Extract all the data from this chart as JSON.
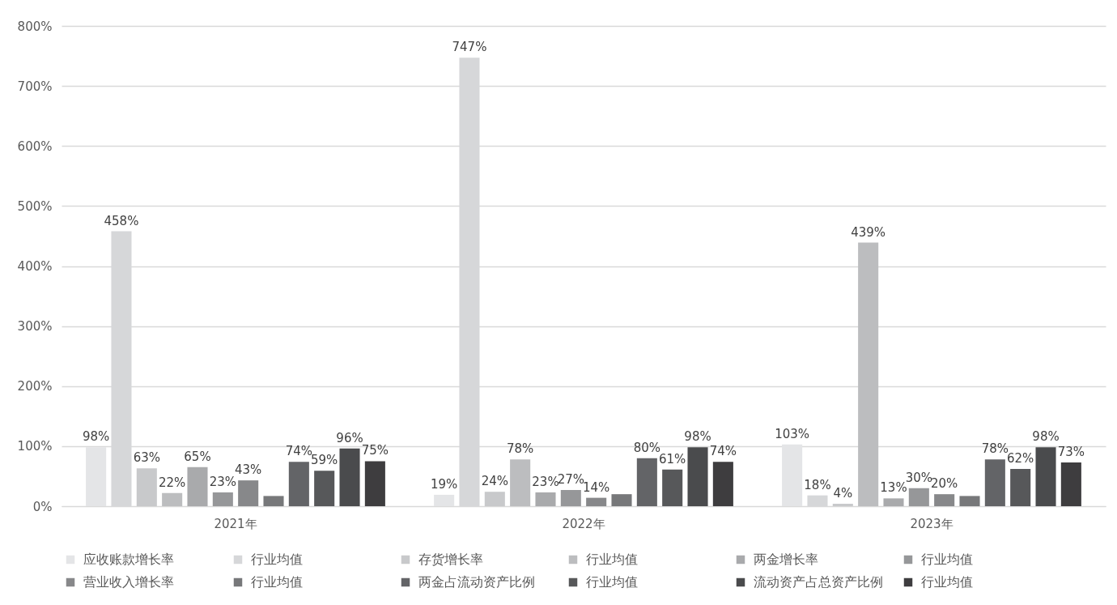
{
  "chart_data": {
    "type": "bar",
    "categories": [
      "2021年",
      "2022年",
      "2023年"
    ],
    "series": [
      {
        "name": "应收账款增长率",
        "color": "#e4e5e7",
        "values": [
          98,
          19,
          103
        ],
        "value_labels": [
          "98%",
          "19%",
          "103%"
        ]
      },
      {
        "name": "行业均值",
        "color": "#d6d7d9",
        "values": [
          458,
          747,
          18
        ],
        "value_labels": [
          "458%",
          "747%",
          "18%"
        ]
      },
      {
        "name": "存货增长率",
        "color": "#c8c9cb",
        "values": [
          63,
          24,
          4
        ],
        "value_labels": [
          "63%",
          "24%",
          "4%"
        ]
      },
      {
        "name": "行业均值",
        "color": "#bcbdbf",
        "values": [
          22,
          78,
          439
        ],
        "value_labels": [
          "22%",
          "78%",
          "439%"
        ]
      },
      {
        "name": "两金增长率",
        "color": "#a9aaac",
        "values": [
          65,
          23,
          13
        ],
        "value_labels": [
          "65%",
          "23%",
          "13%"
        ]
      },
      {
        "name": "行业均值",
        "color": "#969799",
        "values": [
          23,
          27,
          30
        ],
        "value_labels": [
          "23%",
          "27%",
          "30%"
        ]
      },
      {
        "name": "营业收入增长率",
        "color": "#87888a",
        "values": [
          43,
          14,
          20
        ],
        "value_labels": [
          "43%",
          "14%",
          "20%"
        ]
      },
      {
        "name": "行业均值",
        "color": "#77787a",
        "values": [
          17,
          20,
          17
        ],
        "value_labels": [
          null,
          null,
          null
        ]
      },
      {
        "name": "两金占流动资产比例",
        "color": "#636467",
        "values": [
          74,
          80,
          78
        ],
        "value_labels": [
          "74%",
          "80%",
          "78%"
        ]
      },
      {
        "name": "行业均值",
        "color": "#57585a",
        "values": [
          59,
          61,
          62
        ],
        "value_labels": [
          "59%",
          "61%",
          "62%"
        ]
      },
      {
        "name": "流动资产占总资产比例",
        "color": "#4a4b4d",
        "values": [
          96,
          98,
          98
        ],
        "value_labels": [
          "96%",
          "98%",
          "98%"
        ]
      },
      {
        "name": "行业均值",
        "color": "#3e3d3f",
        "values": [
          75,
          74,
          73
        ],
        "value_labels": [
          "75%",
          "74%",
          "73%"
        ]
      }
    ],
    "ylim": [
      0,
      800
    ],
    "yticks": [
      {
        "value": 0,
        "label": "0%"
      },
      {
        "value": 100,
        "label": "100%"
      },
      {
        "value": 200,
        "label": "200%"
      },
      {
        "value": 300,
        "label": "300%"
      },
      {
        "value": 400,
        "label": "400%"
      },
      {
        "value": 500,
        "label": "500%"
      },
      {
        "value": 600,
        "label": "600%"
      },
      {
        "value": 700,
        "label": "700%"
      },
      {
        "value": 800,
        "label": "800%"
      }
    ],
    "grid": "y",
    "legend": "bottom"
  }
}
